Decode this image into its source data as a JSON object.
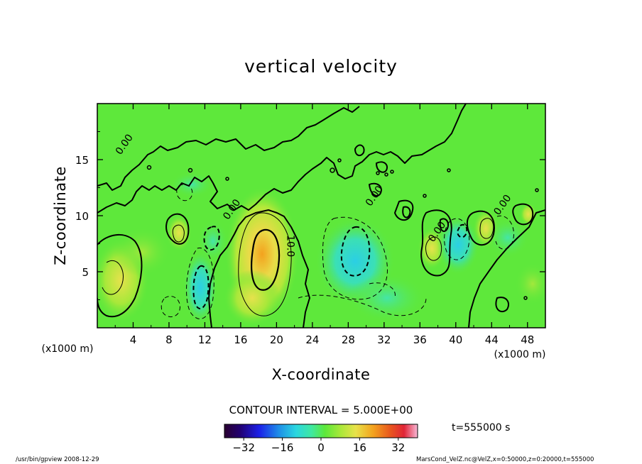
{
  "chart_data": {
    "type": "heatmap",
    "title": "vertical velocity",
    "xlabel": "X-coordinate",
    "ylabel": "Z-coordinate",
    "x_unit": "(x1000 m)",
    "y_unit": "(x1000 m)",
    "xlim": [
      0,
      50
    ],
    "ylim": [
      0,
      20
    ],
    "x_ticks": [
      "4",
      "8",
      "12",
      "16",
      "20",
      "24",
      "28",
      "32",
      "36",
      "40",
      "44",
      "48"
    ],
    "y_ticks": [
      "5",
      "10",
      "15"
    ],
    "contour_interval_label": "CONTOUR INTERVAL = 5.000E+00",
    "contour_labels": [
      {
        "text": "0.00",
        "x": 3.3,
        "y": 16.2
      },
      {
        "text": "0.00",
        "x": 15.3,
        "y": 10.4
      },
      {
        "text": "10.0",
        "x": 21.2,
        "y": 7.3
      },
      {
        "text": "0.00",
        "x": 31.2,
        "y": 11.6
      },
      {
        "text": "0.00",
        "x": 38.2,
        "y": 8.4
      },
      {
        "text": "0.00",
        "x": 45.5,
        "y": 10.8
      }
    ],
    "colorbar": {
      "range": [
        -40,
        40
      ],
      "tick_labels": [
        "−32",
        "−16",
        "0",
        "16",
        "32"
      ]
    },
    "time_label": "t=555000  s",
    "colors": {
      "background": "#5ee83b",
      "updraft_peak": "#f3a21e",
      "downdraft_peak": "#2fd0e8"
    }
  },
  "footer": {
    "left": "/usr/bin/gpview  2008-12-29",
    "right": "MarsCond_VelZ.nc@VelZ,x=0:50000,z=0:20000,t=555000"
  }
}
